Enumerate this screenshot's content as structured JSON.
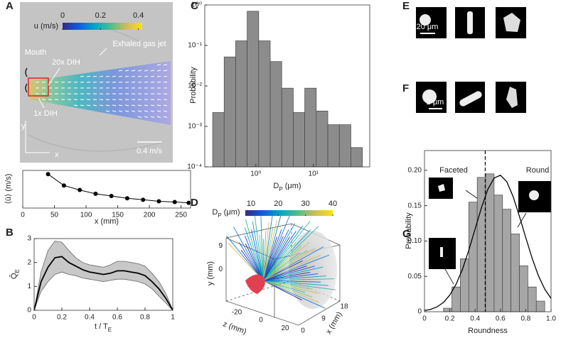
{
  "panel_labels": [
    "A",
    "B",
    "C",
    "D",
    "E",
    "F",
    "G"
  ],
  "panel_a": {
    "colorbar_label": "u (m/s)",
    "colorbar_ticks": [
      0,
      0.2,
      0.4
    ],
    "clim": [
      0,
      0.42
    ],
    "annotations": [
      "Mouth",
      "20x DIH",
      "Exhaled gas jet",
      "1x DIH",
      "0.4 m/s"
    ],
    "axis_y": "y",
    "axis_x": "x"
  },
  "chart_data": [
    {
      "type": "line",
      "x": [
        40,
        65,
        90,
        115,
        140,
        165,
        190,
        215,
        240,
        262
      ],
      "values": [
        0.45,
        0.3,
        0.24,
        0.19,
        0.16,
        0.13,
        0.11,
        0.09,
        0.08,
        0.07
      ],
      "xlim": [
        0,
        265
      ],
      "xticks": [
        0,
        50,
        100,
        150,
        200,
        250
      ],
      "ylim": [
        0,
        0.5
      ],
      "color": "#000000",
      "xlabel": "x (mm)",
      "ylabel": "⟨ū⟩ (m/s)"
    },
    {
      "type": "band_line",
      "x": [
        0,
        0.05,
        0.1,
        0.15,
        0.2,
        0.25,
        0.3,
        0.35,
        0.4,
        0.45,
        0.5,
        0.55,
        0.6,
        0.65,
        0.7,
        0.75,
        0.8,
        0.85,
        0.9,
        0.95,
        1
      ],
      "values": [
        0,
        1.2,
        1.8,
        2.2,
        2.25,
        2.0,
        1.85,
        1.7,
        1.6,
        1.55,
        1.5,
        1.55,
        1.65,
        1.65,
        1.6,
        1.55,
        1.45,
        1.2,
        0.9,
        0.5,
        0
      ],
      "upper": [
        0,
        1.6,
        2.5,
        2.9,
        2.85,
        2.5,
        2.2,
        2.0,
        1.9,
        1.85,
        1.8,
        1.9,
        2.05,
        2.05,
        2.0,
        1.95,
        1.85,
        1.55,
        1.2,
        0.7,
        0
      ],
      "lower": [
        0,
        0.8,
        1.2,
        1.5,
        1.6,
        1.5,
        1.45,
        1.35,
        1.3,
        1.25,
        1.2,
        1.25,
        1.3,
        1.3,
        1.25,
        1.2,
        1.1,
        0.9,
        0.6,
        0.3,
        0
      ],
      "xlim": [
        0,
        1
      ],
      "xticks": [
        0,
        0.2,
        0.4,
        0.6,
        0.8,
        1
      ],
      "ylim": [
        0,
        3
      ],
      "yticks": [
        0,
        1,
        2,
        3
      ],
      "color": "#000000",
      "band_color": "#c8c8c8",
      "xlabel": [
        {
          "text": "t / T"
        },
        {
          "text": "E",
          "script": "sub"
        }
      ],
      "ylabel": [
        {
          "text": "Q̂"
        },
        {
          "text": "E",
          "script": "sub"
        }
      ]
    },
    {
      "type": "histogram",
      "xscale": "log",
      "yscale": "log",
      "bins": [
        0.178,
        0.282,
        0.447,
        0.708,
        1.122,
        1.778,
        2.818,
        4.467,
        7.079,
        11.22,
        17.78,
        28.18,
        44.67,
        70.79
      ],
      "values": [
        0.0022,
        0.052,
        0.13,
        0.7,
        0.13,
        0.04,
        0.0088,
        0.0022,
        0.0088,
        0.0024,
        0.0011,
        0.0011,
        0.0003
      ],
      "xlim": [
        0.13,
        95
      ],
      "xticks": [
        {
          "value": 1,
          "label": "10⁰"
        },
        {
          "value": 10,
          "label": "10¹"
        }
      ],
      "ylim": [
        0.0001,
        1
      ],
      "yticks": [
        {
          "value": 0.0001,
          "label": "10⁻⁴"
        },
        {
          "value": 0.001,
          "label": "10⁻³"
        },
        {
          "value": 0.01,
          "label": "10⁻²"
        },
        {
          "value": 0.1,
          "label": "10⁻¹"
        },
        {
          "value": 1,
          "label": "10⁰"
        }
      ],
      "color": "#8c8c8c",
      "xlabel": [
        {
          "text": "D"
        },
        {
          "text": "P",
          "script": "sub"
        },
        {
          "text": " (μm)"
        }
      ],
      "ylabel": "Probability"
    },
    {
      "type": "histogram",
      "bins": [
        0.15,
        0.2167,
        0.2833,
        0.35,
        0.4167,
        0.4833,
        0.55,
        0.6167,
        0.6833,
        0.75,
        0.8167,
        0.8833,
        0.95
      ],
      "values": [
        0.005,
        0.035,
        0.075,
        0.155,
        0.19,
        0.195,
        0.165,
        0.145,
        0.11,
        0.065,
        0.035,
        0.015
      ],
      "fit": {
        "x": [
          0,
          0.05,
          0.1,
          0.15,
          0.2,
          0.25,
          0.3,
          0.35,
          0.4,
          0.45,
          0.5,
          0.55,
          0.6,
          0.65,
          0.7,
          0.75,
          0.8,
          0.85,
          0.9,
          0.95,
          1
        ],
        "values": [
          0.0016,
          0.0034,
          0.0069,
          0.0132,
          0.0235,
          0.039,
          0.06,
          0.087,
          0.117,
          0.147,
          0.173,
          0.189,
          0.193,
          0.184,
          0.163,
          0.135,
          0.105,
          0.076,
          0.051,
          0.032,
          0.0188
        ]
      },
      "threshold": 0.48,
      "xlim": [
        0,
        1
      ],
      "xticks": [
        0,
        0.2,
        0.4,
        0.6,
        0.8,
        {
          "value": 1,
          "label": "1.0"
        }
      ],
      "ylim": [
        0,
        0.228
      ],
      "yticks": [
        0,
        0.05,
        {
          "value": 0.1,
          "label": "0.10"
        },
        0.15,
        {
          "value": 0.2,
          "label": "0.20"
        }
      ],
      "color": "#a6a6a6",
      "xlabel": "Roundness",
      "ylabel": "Probability",
      "annotations": [
        "Faceted",
        "Round"
      ]
    }
  ],
  "panel_d": {
    "colorbar_label": [
      {
        "text": "D"
      },
      {
        "text": "P",
        "script": "sub"
      },
      {
        "text": " (μm)"
      }
    ],
    "colorbar_ticks": [
      10,
      20,
      30,
      40
    ],
    "clim": [
      7.9,
      40
    ],
    "xlabel": "x (mm)",
    "ylabel": "y (mm)",
    "zlabel": "z (mm)",
    "xlim": [
      0,
      18
    ],
    "xticks": [
      0,
      9,
      18
    ],
    "zlim": [
      -30,
      30
    ],
    "zticks": [
      -20,
      0,
      20
    ],
    "ylim": [
      -12,
      12
    ],
    "yticks": [
      0,
      9
    ]
  },
  "panel_e": {
    "scale_label": "20 μm"
  },
  "panel_f": {
    "scale_label": "2 μm"
  }
}
